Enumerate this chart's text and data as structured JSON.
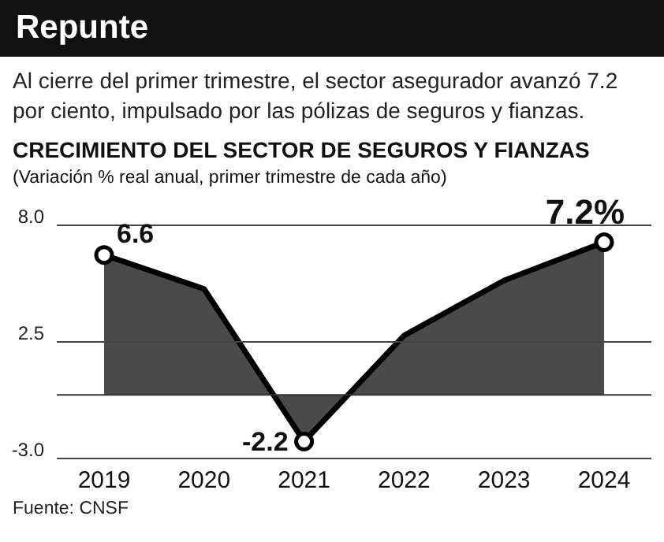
{
  "chart_data": {
    "type": "area",
    "title": "Repunte",
    "subtitle": "Al cierre del primer trimestre, el sector asegurador avanzó 7.2 por ciento, impulsado por las pólizas de seguros y fianzas.",
    "annotations": [
      "CRECIMIENTO DEL SECTOR DE SEGUROS Y FIANZAS",
      "(Variación % real anual, primer trimestre de cada año)",
      "Fuente: CNSF"
    ],
    "categories": [
      "2019",
      "2020",
      "2021",
      "2022",
      "2023",
      "2024"
    ],
    "series": [
      {
        "color": "#4a4a4a",
        "values": [
          6.6,
          5.0,
          -2.2,
          2.8,
          5.4,
          7.2
        ],
        "value_labels": [
          "6.6",
          null,
          "-2.2",
          null,
          null,
          "7.2%"
        ]
      }
    ],
    "ylim": [
      -3,
      8
    ],
    "yticks": [
      {
        "value": 8,
        "label": "8.0"
      },
      {
        "value": 2.5,
        "label": "2.5"
      },
      {
        "value": -3,
        "label": "-3.0"
      }
    ],
    "grid": "y",
    "marker": "circle",
    "line_style": "solid",
    "ref_lines": [
      {
        "axis": "y",
        "value": 0,
        "color": "#333333"
      }
    ]
  }
}
